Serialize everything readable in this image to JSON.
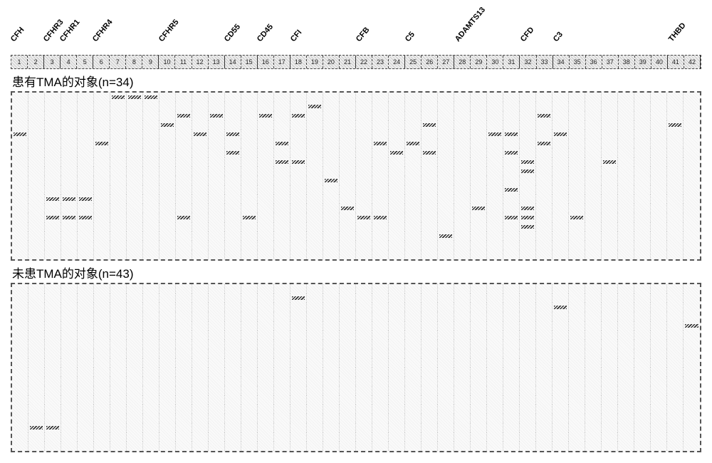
{
  "genes": [
    {
      "name": "CFH",
      "cols": [
        1,
        2
      ]
    },
    {
      "name": "CFHR3",
      "cols": [
        3
      ]
    },
    {
      "name": "CFHR1",
      "cols": [
        4,
        5
      ]
    },
    {
      "name": "CFHR4",
      "cols": [
        6,
        7,
        8,
        9
      ]
    },
    {
      "name": "CFHR5",
      "cols": [
        10,
        11,
        12,
        13
      ]
    },
    {
      "name": "CD55",
      "cols": [
        14,
        15
      ]
    },
    {
      "name": "CD45",
      "cols": [
        16,
        17
      ]
    },
    {
      "name": "CFI",
      "cols": [
        18,
        19,
        20,
        21
      ]
    },
    {
      "name": "CFB",
      "cols": [
        22,
        23,
        24
      ]
    },
    {
      "name": "C5",
      "cols": [
        25,
        26,
        27
      ]
    },
    {
      "name": "ADAMTS13",
      "cols": [
        28,
        29,
        30,
        31
      ]
    },
    {
      "name": "CFD",
      "cols": [
        32,
        33
      ]
    },
    {
      "name": "C3",
      "cols": [
        34,
        35,
        36,
        37,
        38,
        39,
        40
      ]
    },
    {
      "name": "THBD",
      "cols": [
        41,
        42
      ]
    }
  ],
  "total_cols": 42,
  "section1_title": "患有TMA的对象(n=34)",
  "section2_title": "未患TMA的对象(n=43)",
  "section1_rows": 18,
  "section2_rows": 18,
  "section1_marks": [
    {
      "r": 0,
      "c": 7
    },
    {
      "r": 0,
      "c": 8
    },
    {
      "r": 0,
      "c": 9
    },
    {
      "r": 1,
      "c": 19
    },
    {
      "r": 2,
      "c": 11
    },
    {
      "r": 2,
      "c": 13
    },
    {
      "r": 2,
      "c": 16
    },
    {
      "r": 2,
      "c": 18
    },
    {
      "r": 2,
      "c": 33
    },
    {
      "r": 3,
      "c": 10
    },
    {
      "r": 3,
      "c": 26
    },
    {
      "r": 3,
      "c": 41
    },
    {
      "r": 4,
      "c": 1
    },
    {
      "r": 4,
      "c": 12
    },
    {
      "r": 4,
      "c": 14
    },
    {
      "r": 4,
      "c": 30
    },
    {
      "r": 4,
      "c": 31
    },
    {
      "r": 4,
      "c": 34
    },
    {
      "r": 5,
      "c": 6
    },
    {
      "r": 5,
      "c": 17
    },
    {
      "r": 5,
      "c": 23
    },
    {
      "r": 5,
      "c": 25
    },
    {
      "r": 5,
      "c": 33
    },
    {
      "r": 6,
      "c": 14
    },
    {
      "r": 6,
      "c": 24
    },
    {
      "r": 6,
      "c": 26
    },
    {
      "r": 6,
      "c": 31
    },
    {
      "r": 7,
      "c": 17
    },
    {
      "r": 7,
      "c": 18
    },
    {
      "r": 7,
      "c": 32
    },
    {
      "r": 7,
      "c": 37
    },
    {
      "r": 8,
      "c": 32
    },
    {
      "r": 9,
      "c": 20
    },
    {
      "r": 10,
      "c": 31
    },
    {
      "r": 11,
      "c": 3
    },
    {
      "r": 11,
      "c": 4
    },
    {
      "r": 11,
      "c": 5
    },
    {
      "r": 12,
      "c": 21
    },
    {
      "r": 12,
      "c": 29
    },
    {
      "r": 12,
      "c": 32
    },
    {
      "r": 13,
      "c": 3
    },
    {
      "r": 13,
      "c": 4
    },
    {
      "r": 13,
      "c": 5
    },
    {
      "r": 13,
      "c": 11
    },
    {
      "r": 13,
      "c": 15
    },
    {
      "r": 13,
      "c": 22
    },
    {
      "r": 13,
      "c": 23
    },
    {
      "r": 13,
      "c": 31
    },
    {
      "r": 13,
      "c": 32
    },
    {
      "r": 13,
      "c": 35
    },
    {
      "r": 14,
      "c": 32
    },
    {
      "r": 15,
      "c": 27
    }
  ],
  "section2_marks": [
    {
      "r": 1,
      "c": 18
    },
    {
      "r": 2,
      "c": 34
    },
    {
      "r": 4,
      "c": 42
    },
    {
      "r": 15,
      "c": 2
    },
    {
      "r": 15,
      "c": 3
    }
  ],
  "colors": {
    "mark": "#333333",
    "border": "#555555",
    "headerbg": "#cccccc",
    "gridbg": "#f0f0f0"
  },
  "fonts": {
    "gene_label_size": 11,
    "title_size": 17,
    "colnum_size": 9
  }
}
